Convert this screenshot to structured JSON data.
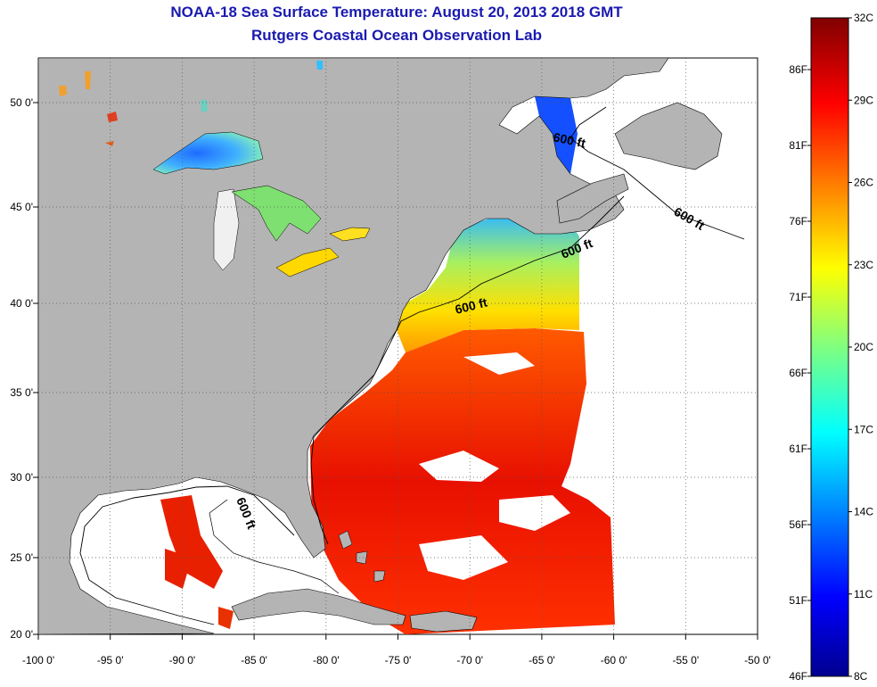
{
  "header": {
    "title": "NOAA-18 Sea Surface Temperature:  August 20, 2013 2018 GMT",
    "subtitle": "Rutgers Coastal Ocean Observation Lab"
  },
  "map": {
    "lon_ticks": [
      "-100 0'",
      "-95 0'",
      "-90 0'",
      "-85 0'",
      "-80 0'",
      "-75 0'",
      "-70 0'",
      "-65 0'",
      "-60 0'",
      "-55 0'",
      "-50 0'"
    ],
    "lat_ticks": [
      "20 0'",
      "25 0'",
      "30 0'",
      "35 0'",
      "40 0'",
      "45 0'",
      "50 0'"
    ],
    "isobath_labels": [
      "600 ft",
      "600 ft",
      "600 ft",
      "600 ft",
      "600 ft"
    ],
    "land_color": "#b4b4b4",
    "nodata_color": "#ffffff"
  },
  "colorbar": {
    "celsius_labels": [
      "32C",
      "29C",
      "26C",
      "23C",
      "20C",
      "17C",
      "14C",
      "11C",
      "8C"
    ],
    "fahrenheit_labels": [
      "86F",
      "81F",
      "76F",
      "71F",
      "66F",
      "61F",
      "56F",
      "51F",
      "46F"
    ],
    "colormap": "jet",
    "min_c": 8,
    "max_c": 32
  }
}
